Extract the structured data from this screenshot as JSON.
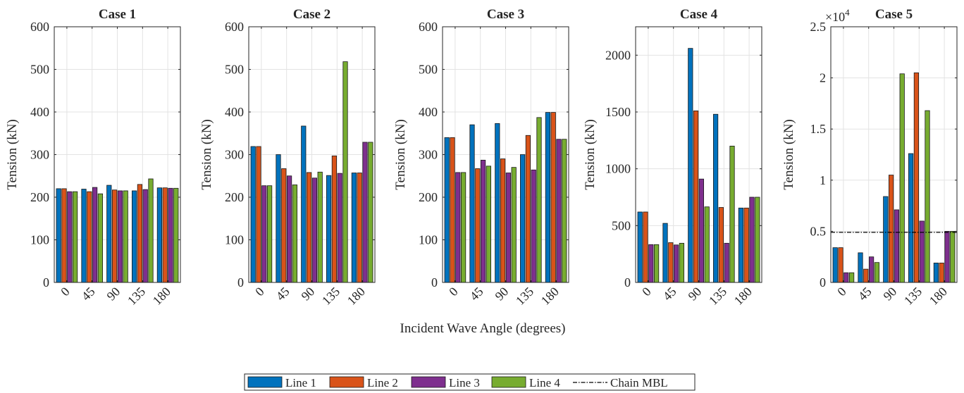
{
  "chart_data": [
    {
      "type": "bar",
      "title": "Case 1",
      "ylabel": "Tension (kN)",
      "ylim": [
        0,
        600
      ],
      "yticks": [
        0,
        100,
        200,
        300,
        400,
        500,
        600
      ],
      "ytick_labels": [
        "0",
        "100",
        "200",
        "300",
        "400",
        "500",
        "600"
      ],
      "exponent_label": "",
      "categories": [
        "0",
        "45",
        "90",
        "135",
        "180"
      ],
      "series": [
        {
          "name": "Line 1",
          "values": [
            220,
            219,
            228,
            215,
            222
          ]
        },
        {
          "name": "Line 2",
          "values": [
            220,
            213,
            217,
            230,
            222
          ]
        },
        {
          "name": "Line 3",
          "values": [
            213,
            223,
            215,
            218,
            221
          ]
        },
        {
          "name": "Line 4",
          "values": [
            213,
            208,
            215,
            243,
            221
          ]
        }
      ],
      "reference_line": null
    },
    {
      "type": "bar",
      "title": "Case 2",
      "ylabel": "Tension (kN)",
      "ylim": [
        0,
        600
      ],
      "yticks": [
        0,
        100,
        200,
        300,
        400,
        500,
        600
      ],
      "ytick_labels": [
        "0",
        "100",
        "200",
        "300",
        "400",
        "500",
        "600"
      ],
      "exponent_label": "",
      "categories": [
        "0",
        "45",
        "90",
        "135",
        "180"
      ],
      "series": [
        {
          "name": "Line 1",
          "values": [
            319,
            300,
            367,
            251,
            257
          ]
        },
        {
          "name": "Line 2",
          "values": [
            319,
            267,
            258,
            297,
            257
          ]
        },
        {
          "name": "Line 3",
          "values": [
            227,
            250,
            245,
            256,
            329
          ]
        },
        {
          "name": "Line 4",
          "values": [
            227,
            229,
            259,
            518,
            329
          ]
        }
      ],
      "reference_line": null
    },
    {
      "type": "bar",
      "title": "Case 3",
      "ylabel": "Tension (kN)",
      "ylim": [
        0,
        600
      ],
      "yticks": [
        0,
        100,
        200,
        300,
        400,
        500,
        600
      ],
      "ytick_labels": [
        "0",
        "100",
        "200",
        "300",
        "400",
        "500",
        "600"
      ],
      "exponent_label": "",
      "categories": [
        "0",
        "45",
        "90",
        "135",
        "180"
      ],
      "series": [
        {
          "name": "Line 1",
          "values": [
            340,
            370,
            373,
            300,
            399
          ]
        },
        {
          "name": "Line 2",
          "values": [
            340,
            267,
            290,
            345,
            399
          ]
        },
        {
          "name": "Line 3",
          "values": [
            258,
            287,
            257,
            264,
            336
          ]
        },
        {
          "name": "Line 4",
          "values": [
            258,
            273,
            270,
            387,
            336
          ]
        }
      ],
      "reference_line": null
    },
    {
      "type": "bar",
      "title": "Case 4",
      "ylabel": "Tension (kN)",
      "ylim": [
        0,
        2250
      ],
      "yticks": [
        0,
        500,
        1000,
        1500,
        2000
      ],
      "ytick_labels": [
        "0",
        "500",
        "1000",
        "1500",
        "2000"
      ],
      "exponent_label": "",
      "categories": [
        "0",
        "45",
        "90",
        "135",
        "180"
      ],
      "series": [
        {
          "name": "Line 1",
          "values": [
            620,
            520,
            2060,
            1480,
            655
          ]
        },
        {
          "name": "Line 2",
          "values": [
            620,
            350,
            1510,
            660,
            655
          ]
        },
        {
          "name": "Line 3",
          "values": [
            333,
            330,
            910,
            345,
            750
          ]
        },
        {
          "name": "Line 4",
          "values": [
            333,
            345,
            665,
            1200,
            750
          ]
        }
      ],
      "reference_line": null
    },
    {
      "type": "bar",
      "title": "Case 5",
      "ylabel": "Tension (kN)",
      "ylim": [
        0,
        25000
      ],
      "yticks": [
        0,
        5000,
        10000,
        15000,
        20000,
        25000
      ],
      "ytick_labels": [
        "0",
        "0.5",
        "1",
        "1.5",
        "2",
        "2.5"
      ],
      "exponent_label": "×10",
      "exponent_power": "4",
      "categories": [
        "0",
        "45",
        "90",
        "135",
        "180"
      ],
      "series": [
        {
          "name": "Line 1",
          "values": [
            3400,
            2900,
            8400,
            12600,
            1900
          ]
        },
        {
          "name": "Line 2",
          "values": [
            3400,
            1300,
            10500,
            20500,
            1900
          ]
        },
        {
          "name": "Line 3",
          "values": [
            950,
            2500,
            7100,
            6000,
            5000
          ]
        },
        {
          "name": "Line 4",
          "values": [
            950,
            1950,
            20400,
            16800,
            5000
          ]
        }
      ],
      "reference_line": {
        "name": "Chain MBL",
        "value": 4900,
        "style": "dash-dot",
        "color": "#000000"
      }
    }
  ],
  "shared": {
    "xlabel": "Incident Wave Angle (degrees)",
    "grid": true,
    "series_colors": [
      "#0072BD",
      "#D95319",
      "#7E2F8E",
      "#77AC30"
    ],
    "legend": {
      "placement": "bottom-center",
      "entries": [
        {
          "label": "Line 1",
          "kind": "patch",
          "color": "#0072BD"
        },
        {
          "label": "Line 2",
          "kind": "patch",
          "color": "#D95319"
        },
        {
          "label": "Line 3",
          "kind": "patch",
          "color": "#7E2F8E"
        },
        {
          "label": "Line 4",
          "kind": "patch",
          "color": "#77AC30"
        },
        {
          "label": "Chain MBL",
          "kind": "line",
          "color": "#000000"
        }
      ]
    }
  }
}
